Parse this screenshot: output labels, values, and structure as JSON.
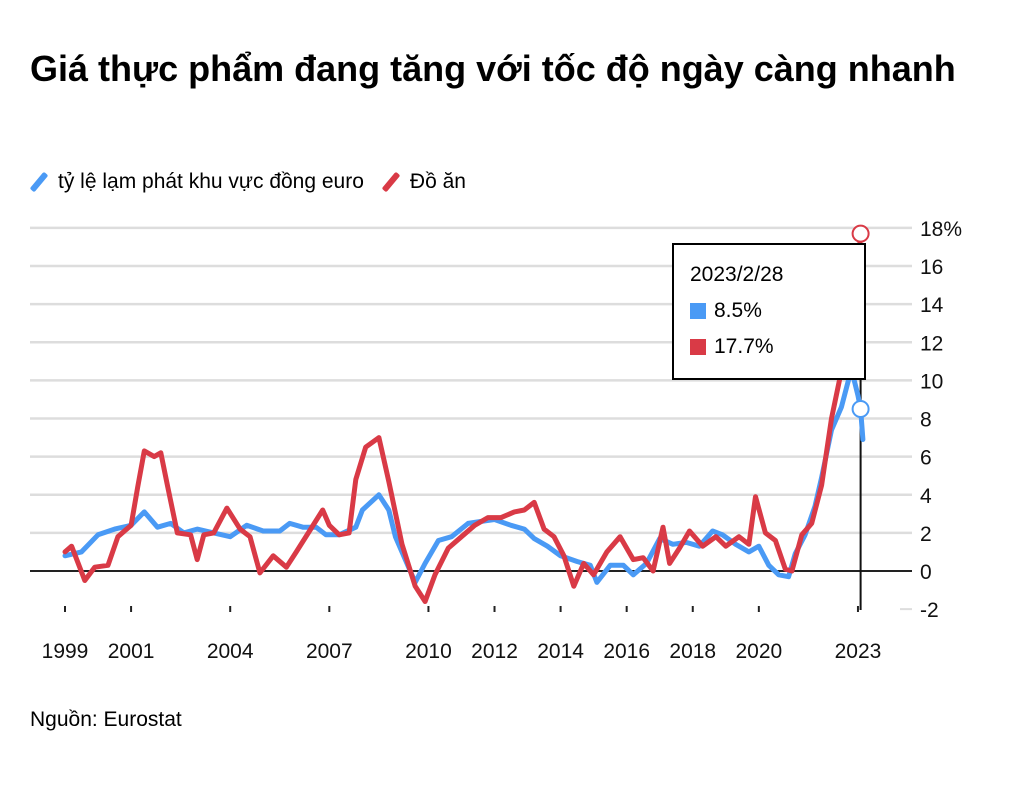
{
  "title": "Giá thực phẩm đang tăng với tốc độ ngày càng nhanh",
  "source": "Nguồn: Eurostat",
  "tooltip": {
    "date": "2023/2/28",
    "values": [
      "8.5%",
      "17.7%"
    ]
  },
  "chart_data": {
    "type": "line",
    "ylim": [
      -2,
      18
    ],
    "xlim": [
      1999,
      2023.25
    ],
    "y_ticks": [
      "18%",
      "16",
      "14",
      "12",
      "10",
      "8",
      "6",
      "4",
      "2",
      "0",
      "-2"
    ],
    "x_ticks": [
      "1999",
      "2001",
      "2004",
      "2007",
      "2010",
      "2012",
      "2014",
      "2016",
      "2018",
      "2020",
      "2023"
    ],
    "grid": true,
    "legend_position": "top-left",
    "series": [
      {
        "name": "tỷ lệ lạm phát khu vực đồng euro",
        "color": "#4a9af5",
        "points": [
          [
            1999.0,
            0.8
          ],
          [
            1999.5,
            1.0
          ],
          [
            2000.0,
            1.9
          ],
          [
            2000.5,
            2.2
          ],
          [
            2001.0,
            2.4
          ],
          [
            2001.4,
            3.1
          ],
          [
            2001.8,
            2.3
          ],
          [
            2002.2,
            2.5
          ],
          [
            2002.6,
            2.0
          ],
          [
            2003.0,
            2.2
          ],
          [
            2003.5,
            2.0
          ],
          [
            2004.0,
            1.8
          ],
          [
            2004.5,
            2.4
          ],
          [
            2005.0,
            2.1
          ],
          [
            2005.5,
            2.1
          ],
          [
            2005.8,
            2.5
          ],
          [
            2006.2,
            2.3
          ],
          [
            2006.6,
            2.3
          ],
          [
            2006.9,
            1.9
          ],
          [
            2007.3,
            1.9
          ],
          [
            2007.8,
            2.3
          ],
          [
            2008.0,
            3.2
          ],
          [
            2008.5,
            4.0
          ],
          [
            2008.8,
            3.2
          ],
          [
            2009.0,
            1.8
          ],
          [
            2009.3,
            0.6
          ],
          [
            2009.6,
            -0.6
          ],
          [
            2009.9,
            0.4
          ],
          [
            2010.3,
            1.6
          ],
          [
            2010.7,
            1.8
          ],
          [
            2011.2,
            2.5
          ],
          [
            2011.6,
            2.6
          ],
          [
            2012.0,
            2.7
          ],
          [
            2012.5,
            2.4
          ],
          [
            2012.9,
            2.2
          ],
          [
            2013.2,
            1.7
          ],
          [
            2013.6,
            1.3
          ],
          [
            2014.0,
            0.8
          ],
          [
            2014.5,
            0.5
          ],
          [
            2014.9,
            0.3
          ],
          [
            2015.1,
            -0.6
          ],
          [
            2015.5,
            0.3
          ],
          [
            2015.9,
            0.3
          ],
          [
            2016.2,
            -0.2
          ],
          [
            2016.6,
            0.4
          ],
          [
            2017.0,
            1.7
          ],
          [
            2017.4,
            1.4
          ],
          [
            2017.8,
            1.5
          ],
          [
            2018.2,
            1.3
          ],
          [
            2018.6,
            2.1
          ],
          [
            2018.9,
            1.9
          ],
          [
            2019.3,
            1.4
          ],
          [
            2019.7,
            1.0
          ],
          [
            2020.0,
            1.3
          ],
          [
            2020.3,
            0.3
          ],
          [
            2020.6,
            -0.2
          ],
          [
            2020.9,
            -0.3
          ],
          [
            2021.1,
            0.9
          ],
          [
            2021.4,
            1.9
          ],
          [
            2021.7,
            3.4
          ],
          [
            2021.9,
            4.9
          ],
          [
            2022.2,
            7.4
          ],
          [
            2022.5,
            8.6
          ],
          [
            2022.8,
            10.6
          ],
          [
            2023.0,
            9.2
          ],
          [
            2023.08,
            8.5
          ],
          [
            2023.15,
            6.9
          ]
        ]
      },
      {
        "name": "Đồ ăn",
        "color": "#d93a46",
        "points": [
          [
            1999.0,
            1.0
          ],
          [
            1999.2,
            1.3
          ],
          [
            1999.6,
            -0.5
          ],
          [
            1999.9,
            0.2
          ],
          [
            2000.3,
            0.3
          ],
          [
            2000.6,
            1.8
          ],
          [
            2001.0,
            2.4
          ],
          [
            2001.2,
            4.4
          ],
          [
            2001.4,
            6.3
          ],
          [
            2001.7,
            6.0
          ],
          [
            2001.9,
            6.2
          ],
          [
            2002.1,
            4.5
          ],
          [
            2002.4,
            2.0
          ],
          [
            2002.8,
            1.9
          ],
          [
            2003.0,
            0.6
          ],
          [
            2003.2,
            1.9
          ],
          [
            2003.5,
            2.0
          ],
          [
            2003.9,
            3.3
          ],
          [
            2004.3,
            2.2
          ],
          [
            2004.6,
            1.8
          ],
          [
            2004.9,
            -0.1
          ],
          [
            2005.3,
            0.8
          ],
          [
            2005.7,
            0.2
          ],
          [
            2006.0,
            1.0
          ],
          [
            2006.4,
            2.1
          ],
          [
            2006.8,
            3.2
          ],
          [
            2007.0,
            2.4
          ],
          [
            2007.3,
            1.9
          ],
          [
            2007.6,
            2.0
          ],
          [
            2007.8,
            4.8
          ],
          [
            2008.1,
            6.5
          ],
          [
            2008.5,
            7.0
          ],
          [
            2008.8,
            4.7
          ],
          [
            2009.2,
            1.4
          ],
          [
            2009.6,
            -0.8
          ],
          [
            2009.9,
            -1.6
          ],
          [
            2010.2,
            -0.2
          ],
          [
            2010.6,
            1.2
          ],
          [
            2011.0,
            1.8
          ],
          [
            2011.4,
            2.4
          ],
          [
            2011.8,
            2.8
          ],
          [
            2012.2,
            2.8
          ],
          [
            2012.6,
            3.1
          ],
          [
            2012.9,
            3.2
          ],
          [
            2013.2,
            3.6
          ],
          [
            2013.5,
            2.2
          ],
          [
            2013.8,
            1.8
          ],
          [
            2014.1,
            0.8
          ],
          [
            2014.4,
            -0.8
          ],
          [
            2014.7,
            0.4
          ],
          [
            2015.0,
            -0.2
          ],
          [
            2015.4,
            1.0
          ],
          [
            2015.8,
            1.8
          ],
          [
            2016.2,
            0.6
          ],
          [
            2016.5,
            0.7
          ],
          [
            2016.8,
            0.0
          ],
          [
            2017.1,
            2.3
          ],
          [
            2017.3,
            0.4
          ],
          [
            2017.6,
            1.2
          ],
          [
            2017.9,
            2.1
          ],
          [
            2018.3,
            1.3
          ],
          [
            2018.7,
            1.8
          ],
          [
            2019.0,
            1.3
          ],
          [
            2019.4,
            1.8
          ],
          [
            2019.7,
            1.4
          ],
          [
            2019.9,
            3.9
          ],
          [
            2020.2,
            2.0
          ],
          [
            2020.5,
            1.6
          ],
          [
            2020.8,
            0.1
          ],
          [
            2021.0,
            0.0
          ],
          [
            2021.3,
            1.9
          ],
          [
            2021.6,
            2.5
          ],
          [
            2021.9,
            4.5
          ],
          [
            2022.2,
            8.0
          ],
          [
            2022.5,
            10.5
          ],
          [
            2022.8,
            14.0
          ],
          [
            2022.95,
            16.4
          ],
          [
            2023.05,
            17.0
          ],
          [
            2023.08,
            17.7
          ]
        ]
      }
    ]
  }
}
